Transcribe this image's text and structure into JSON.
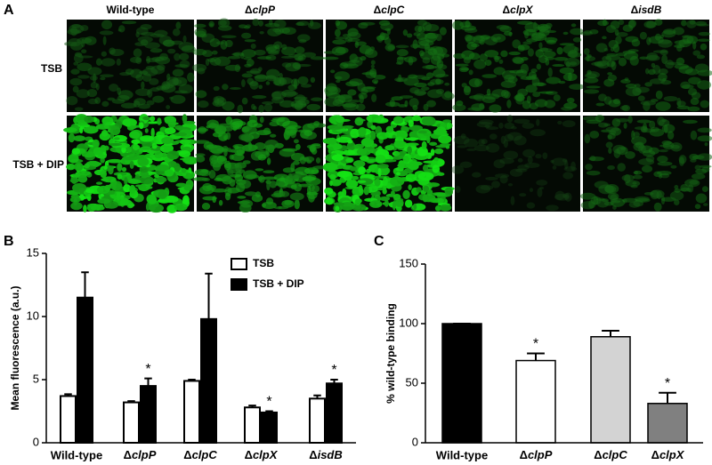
{
  "panel_a": {
    "panel_label": "A",
    "columns": [
      "Wild-type",
      "ΔclpP",
      "ΔclpC",
      "ΔclpX",
      "ΔisdB"
    ],
    "rows": [
      "TSB",
      "TSB + DIP"
    ]
  },
  "chart_data": [
    {
      "type": "bar",
      "panel_label": "B",
      "y_label": "Mean fluorescence (a.u.)",
      "categories": [
        "Wild-type",
        "ΔclpP",
        "ΔclpC",
        "ΔclpX",
        "ΔisdB"
      ],
      "series": [
        {
          "name": "TSB",
          "color": "#ffffff",
          "values": [
            3.7,
            3.2,
            4.9,
            2.8,
            3.5
          ],
          "errors": [
            0.15,
            0.1,
            0.1,
            0.15,
            0.25
          ]
        },
        {
          "name": "TSB + DIP",
          "color": "#000000",
          "values": [
            11.5,
            4.5,
            9.8,
            2.4,
            4.7
          ],
          "errors": [
            2.0,
            0.6,
            3.6,
            0.1,
            0.3
          ]
        }
      ],
      "annotations": [
        {
          "text": "*",
          "category": "ΔclpP",
          "series": "TSB + DIP"
        },
        {
          "text": "*",
          "category": "ΔclpX",
          "series": "TSB + DIP"
        },
        {
          "text": "*",
          "category": "ΔisdB",
          "series": "TSB + DIP"
        }
      ],
      "ylim": [
        0,
        15
      ],
      "yticks": [
        0,
        5,
        10,
        15
      ],
      "legend": "top-right"
    },
    {
      "type": "bar",
      "panel_label": "C",
      "y_label": "% wild-type binding",
      "categories": [
        "Wild-type",
        "ΔclpP",
        "ΔclpC",
        "ΔclpX"
      ],
      "values": [
        100,
        69,
        89,
        33
      ],
      "errors": [
        0,
        6,
        5,
        9
      ],
      "colors": [
        "#000000",
        "#ffffff",
        "#d3d3d3",
        "#808080"
      ],
      "annotations": [
        {
          "text": "*",
          "category": "ΔclpP"
        },
        {
          "text": "*",
          "category": "ΔclpX"
        }
      ],
      "ylim": [
        0,
        150
      ],
      "yticks": [
        0,
        50,
        100,
        150
      ]
    }
  ]
}
